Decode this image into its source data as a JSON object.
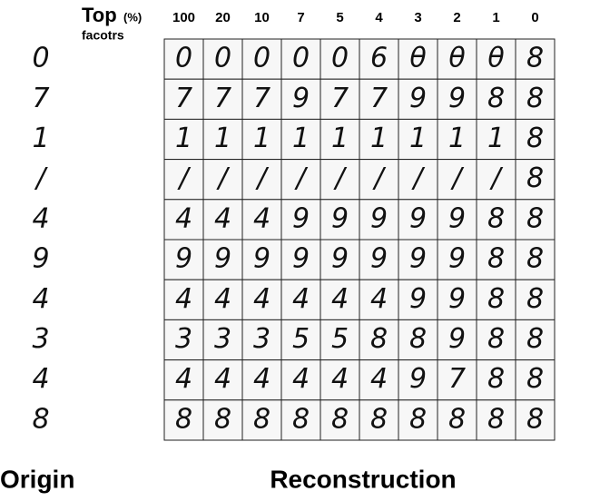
{
  "header": {
    "top": "Top",
    "percent": "(%)",
    "factors": "facotrs"
  },
  "columns": [
    "100",
    "20",
    "10",
    "7",
    "5",
    "4",
    "3",
    "2",
    "1",
    "0"
  ],
  "origin": [
    "0",
    "7",
    "1",
    "/",
    "4",
    "9",
    "4",
    "3",
    "4",
    "8"
  ],
  "grid": [
    [
      "0",
      "0",
      "0",
      "0",
      "0",
      "6",
      "θ",
      "θ",
      "θ",
      "8"
    ],
    [
      "7",
      "7",
      "7",
      "9",
      "7",
      "7",
      "9",
      "9",
      "8",
      "8"
    ],
    [
      "1",
      "1",
      "1",
      "1",
      "1",
      "1",
      "1",
      "1",
      "1",
      "8"
    ],
    [
      "/",
      "/",
      "/",
      "/",
      "/",
      "/",
      "/",
      "/",
      "/",
      "8"
    ],
    [
      "4",
      "4",
      "4",
      "9",
      "9",
      "9",
      "9",
      "9",
      "8",
      "8"
    ],
    [
      "9",
      "9",
      "9",
      "9",
      "9",
      "9",
      "9",
      "9",
      "8",
      "8"
    ],
    [
      "4",
      "4",
      "4",
      "4",
      "4",
      "4",
      "9",
      "9",
      "8",
      "8"
    ],
    [
      "3",
      "3",
      "3",
      "5",
      "5",
      "8",
      "8",
      "9",
      "8",
      "8"
    ],
    [
      "4",
      "4",
      "4",
      "4",
      "4",
      "4",
      "9",
      "7",
      "8",
      "8"
    ],
    [
      "8",
      "8",
      "8",
      "8",
      "8",
      "8",
      "8",
      "8",
      "8",
      "8"
    ]
  ],
  "labels": {
    "origin": "Origin",
    "reconstruction": "Reconstruction"
  }
}
